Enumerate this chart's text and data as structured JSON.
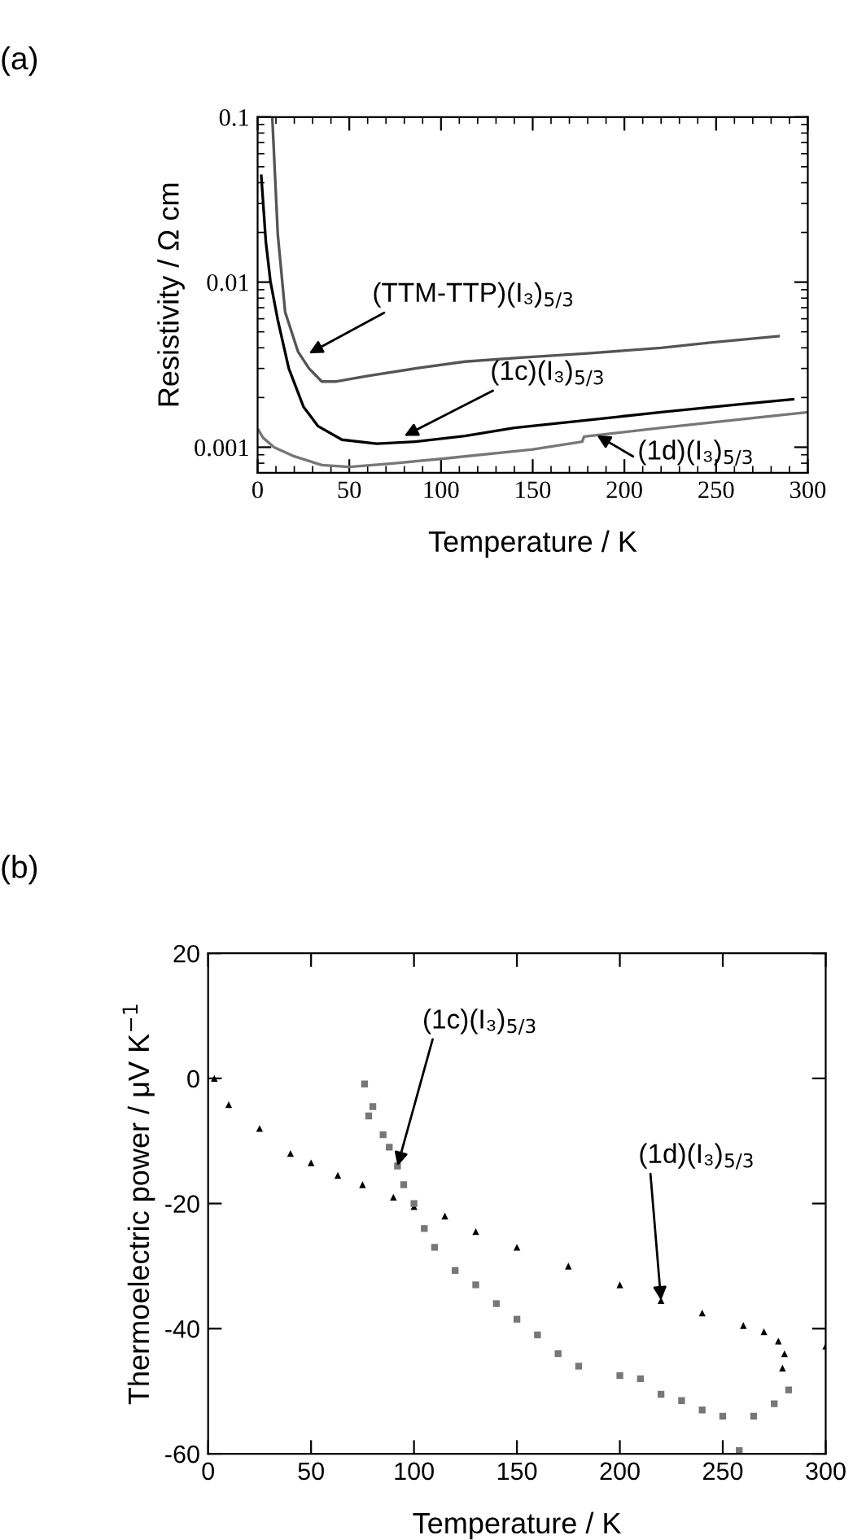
{
  "chart_data": [
    {
      "type": "line",
      "title": "(a)",
      "xlabel": "Temperature / K",
      "ylabel": "Resistivity / Ω cm",
      "log": "y",
      "xlim": [
        0,
        300
      ],
      "xticks": [
        0,
        50,
        100,
        150,
        200,
        250,
        300
      ],
      "ylim": [
        0.0007,
        0.1
      ],
      "yticks": [
        0.001,
        0.01,
        0.1
      ],
      "grid": false,
      "legend": false,
      "series": [
        {
          "color": "#555555",
          "x": [
            8,
            11,
            15,
            22,
            28,
            35,
            43,
            60,
            86,
            113,
            145,
            180,
            220,
            247,
            284
          ],
          "values": [
            0.1,
            0.0195,
            0.0066,
            0.0038,
            0.003,
            0.0025,
            0.0025,
            0.0027,
            0.003,
            0.0033,
            0.0035,
            0.0037,
            0.004,
            0.0043,
            0.0047
          ]
        },
        {
          "color": "#000000",
          "x": [
            2,
            4.5,
            7,
            11,
            17,
            25,
            33,
            46,
            65,
            86,
            113,
            140,
            180,
            220,
            261,
            292
          ],
          "values": [
            0.044,
            0.0175,
            0.0101,
            0.0059,
            0.003,
            0.00176,
            0.00134,
            0.00111,
            0.00105,
            0.00108,
            0.00117,
            0.00131,
            0.00146,
            0.00163,
            0.00181,
            0.00195
          ]
        },
        {
          "color": "#777777",
          "x": [
            0.5,
            3,
            9,
            20,
            35,
            50,
            75,
            100,
            150,
            177,
            178,
            220,
            300
          ],
          "values": [
            0.00127,
            0.00114,
            0.001,
            0.00088,
            0.00078,
            0.00076,
            0.0008,
            0.00085,
            0.00097,
            0.00108,
            0.00116,
            0.00131,
            0.00163
          ]
        }
      ],
      "annotations": [
        {
          "text": "(TTM-TTP)(I₃)$_{5/3}$",
          "x": 28,
          "y": 0.0037
        },
        {
          "text": "(1c)(I₃)$_{5/3}$",
          "x": 80,
          "y": 0.00117
        },
        {
          "text": "(1d)(I₃)$_{5/3}$",
          "x": 185,
          "y": 0.00118
        }
      ]
    },
    {
      "type": "scatter",
      "title": "(b)",
      "xlabel": "Temperature / K",
      "ylabel": "Thermoelectric power / μV K$^{−1}$",
      "xlim": [
        0,
        300
      ],
      "xticks": [
        0,
        50,
        100,
        150,
        200,
        250,
        300
      ],
      "ylim": [
        -60,
        20
      ],
      "yticks": [
        -60,
        -40,
        -20,
        0,
        20
      ],
      "grid": false,
      "legend": false,
      "series": [
        {
          "color": "#000000",
          "marker": "triangle",
          "x": [
            3,
            10,
            25,
            40,
            50,
            63,
            75,
            90,
            100,
            115,
            130,
            150,
            175,
            200,
            220,
            240,
            260,
            270,
            277,
            280,
            279,
            300
          ],
          "values": [
            0,
            -4.2,
            -8,
            -12,
            -13.5,
            -15.5,
            -17,
            -19,
            -20.5,
            -22,
            -24.5,
            -27,
            -30,
            -33,
            -35.5,
            -37.5,
            -39.5,
            -40.5,
            -42,
            -44,
            -46.3,
            -42.8
          ]
        },
        {
          "color": "#777777",
          "marker": "square",
          "x": [
            76,
            78,
            80,
            85,
            88,
            92,
            95,
            100,
            105,
            110,
            120,
            130,
            140,
            150,
            160,
            170,
            180,
            200,
            210,
            220,
            230,
            240,
            250,
            258,
            265,
            275,
            282
          ],
          "values": [
            -0.9,
            -6,
            -4.5,
            -9,
            -11,
            -14,
            -17,
            -20,
            -24,
            -27,
            -30.7,
            -33,
            -36,
            -38.5,
            -41,
            -44,
            -46,
            -47.5,
            -48,
            -50.5,
            -51.5,
            -53,
            -54,
            -59.5,
            -54,
            -52,
            -49.8
          ]
        }
      ],
      "annotations": [
        {
          "text": "(1c)(I₃)$_{5/3}$",
          "x": 92,
          "y": -14
        },
        {
          "text": "(1d)(I₃)$_{5/3}$",
          "x": 220,
          "y": -35.5
        }
      ]
    }
  ]
}
